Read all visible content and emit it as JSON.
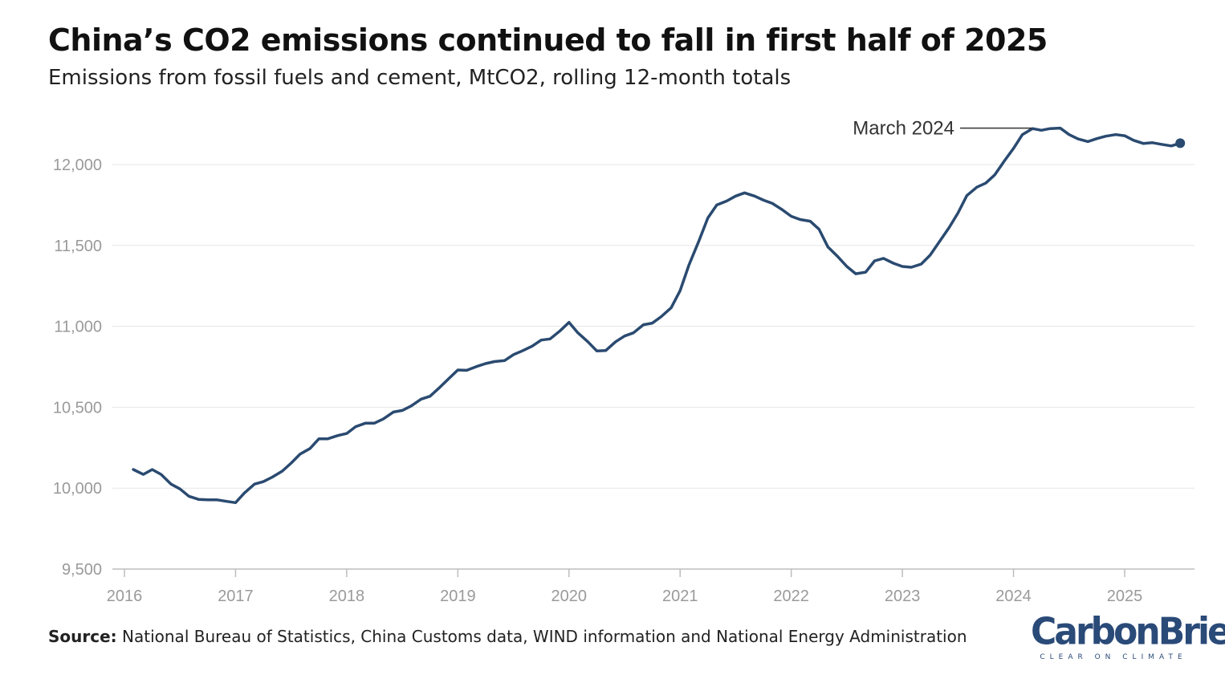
{
  "header": {
    "title": "China’s CO2 emissions continued to fall in first half of 2025",
    "subtitle": "Emissions from fossil fuels and cement, MtCO2, rolling 12-month totals"
  },
  "footer": {
    "source_label": "Source:",
    "source_text": "National Bureau of Statistics, China Customs data, WIND information and National Energy Administration"
  },
  "logo": {
    "wordmark": "CarbonBrief",
    "tagline": "CLEAR ON CLIMATE"
  },
  "chart_data": {
    "type": "line",
    "title": "China’s CO2 emissions continued to fall in first half of 2025",
    "subtitle": "Emissions from fossil fuels and cement, MtCO2, rolling 12-month totals",
    "xlabel": "",
    "ylabel": "",
    "ylim": [
      9500,
      12300
    ],
    "xlim": [
      2015.9,
      2025.65
    ],
    "yticks": [
      9500,
      10000,
      10500,
      11000,
      11500,
      12000
    ],
    "ytick_labels": [
      "9,500",
      "10,000",
      "10,500",
      "11,000",
      "11,500",
      "12,000"
    ],
    "xticks": [
      2016,
      2017,
      2018,
      2019,
      2020,
      2021,
      2022,
      2023,
      2024,
      2025
    ],
    "xtick_labels": [
      "2016",
      "2017",
      "2018",
      "2019",
      "2020",
      "2021",
      "2022",
      "2023",
      "2024",
      "2025"
    ],
    "grid": "horizontal",
    "color": "#2a4a70",
    "annotation": {
      "label": "March 2024",
      "x": 2024.17,
      "y": 12220
    },
    "series": [
      {
        "x": [
          2016.08,
          2016.17,
          2016.25,
          2016.33,
          2016.42,
          2016.5,
          2016.58,
          2016.67,
          2016.75,
          2016.83,
          2016.92,
          2017.0,
          2017.08,
          2017.17,
          2017.25,
          2017.33,
          2017.42,
          2017.5,
          2017.58,
          2017.67,
          2017.75,
          2017.83,
          2017.92,
          2018.0,
          2018.08,
          2018.17,
          2018.25,
          2018.33,
          2018.42,
          2018.5,
          2018.58,
          2018.67,
          2018.75,
          2018.83,
          2018.92,
          2019.0,
          2019.08,
          2019.17,
          2019.25,
          2019.33,
          2019.42,
          2019.5,
          2019.58,
          2019.67,
          2019.75,
          2019.83,
          2019.92,
          2020.0,
          2020.08,
          2020.17,
          2020.25,
          2020.33,
          2020.42,
          2020.5,
          2020.58,
          2020.67,
          2020.75,
          2020.83,
          2020.92,
          2021.0,
          2021.08,
          2021.17,
          2021.25,
          2021.33,
          2021.42,
          2021.5,
          2021.58,
          2021.67,
          2021.75,
          2021.83,
          2021.92,
          2022.0,
          2022.08,
          2022.17,
          2022.25,
          2022.33,
          2022.42,
          2022.5,
          2022.58,
          2022.67,
          2022.75,
          2022.83,
          2022.92,
          2023.0,
          2023.08,
          2023.17,
          2023.25,
          2023.33,
          2023.42,
          2023.5,
          2023.58,
          2023.67,
          2023.75,
          2023.83,
          2023.92,
          2024.0,
          2024.08,
          2024.17,
          2024.25,
          2024.33,
          2024.42,
          2024.5,
          2024.58,
          2024.67,
          2024.75,
          2024.83,
          2024.92,
          2025.0,
          2025.08,
          2025.17,
          2025.25,
          2025.33,
          2025.42,
          2025.5
        ],
        "y": [
          10115,
          10085,
          10115,
          10085,
          10025,
          9995,
          9950,
          9930,
          9928,
          9928,
          9918,
          9910,
          9970,
          10025,
          10040,
          10068,
          10105,
          10155,
          10210,
          10245,
          10305,
          10305,
          10325,
          10338,
          10380,
          10402,
          10402,
          10428,
          10470,
          10480,
          10508,
          10550,
          10568,
          10618,
          10678,
          10730,
          10728,
          10752,
          10770,
          10782,
          10788,
          10825,
          10848,
          10878,
          10915,
          10922,
          10972,
          11025,
          10960,
          10905,
          10848,
          10850,
          10905,
          10940,
          10960,
          11010,
          11020,
          11060,
          11115,
          11220,
          11380,
          11530,
          11670,
          11750,
          11775,
          11805,
          11825,
          11805,
          11780,
          11760,
          11720,
          11680,
          11660,
          11650,
          11600,
          11490,
          11430,
          11370,
          11325,
          11335,
          11405,
          11420,
          11390,
          11370,
          11365,
          11385,
          11440,
          11520,
          11610,
          11700,
          11808,
          11860,
          11885,
          11935,
          12025,
          12100,
          12185,
          12222,
          12212,
          12222,
          12225,
          12185,
          12158,
          12142,
          12160,
          12175,
          12185,
          12178,
          12150,
          12130,
          12135,
          12125,
          12115,
          12132
        ]
      }
    ]
  }
}
